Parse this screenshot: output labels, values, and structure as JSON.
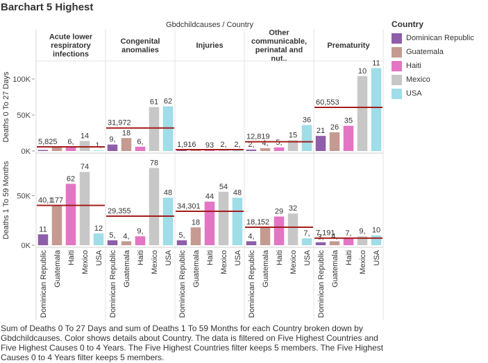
{
  "title": "Barchart 5 Highest",
  "header_caption": "Gbdchildcauses  /  Country",
  "legend": {
    "title": "Country",
    "items": [
      {
        "label": "Dominican Republic",
        "color": "#8e5ea8"
      },
      {
        "label": "Guatemala",
        "color": "#c49a91"
      },
      {
        "label": "Haiti",
        "color": "#e375c4"
      },
      {
        "label": "Mexico",
        "color": "#c7c7c7"
      },
      {
        "label": "USA",
        "color": "#9fdde8"
      }
    ]
  },
  "caption": "Sum of Deaths 0 To 27 Days and sum of Deaths 1 To 59 Months for each Country broken down by Gbdchildcauses.  Color shows details about Country. The data is filtered on Five Highest Countries and Five Highest Causes 0 to 4 Years. The Five Highest Countries filter keeps 5 members. The Five Highest Causes 0 to 4 Years filter keeps 5 members.",
  "chart_data": {
    "type": "bar",
    "columns": [
      "Acute lower respiratory infections",
      "Congenital anomalies",
      "Injuries",
      "Other communicable, perinatal and nut..",
      "Prematurity"
    ],
    "categories": [
      "Dominican Republic",
      "Guatemala",
      "Haiti",
      "Mexico",
      "USA"
    ],
    "rows": [
      {
        "label": "Deaths 0 To 27 Days",
        "ylim": [
          0,
          125000
        ],
        "ticks": [
          {
            "value": 0,
            "label": "0K"
          },
          {
            "value": 50000,
            "label": "50K"
          },
          {
            "value": 100000,
            "label": "100K"
          }
        ],
        "panels": [
          {
            "values": [
              1500,
              6500,
              6000,
              14000,
              1000
            ],
            "labels": [
              "",
              "",
              "6,",
              "14",
              "1,"
            ],
            "avg": 5825,
            "avg_label": "5,825"
          },
          {
            "values": [
              9000,
              18000,
              6000,
              61000,
              62000
            ],
            "labels": [
              "9,",
              "18",
              "6,",
              "61",
              "62"
            ],
            "avg": 31972,
            "avg_label": "31,972"
          },
          {
            "values": [
              2000,
              1500,
              93,
              2000,
              2000
            ],
            "labels": [
              "",
              "",
              "93",
              "2,",
              "2,"
            ],
            "avg": 1916,
            "avg_label": "1,916"
          },
          {
            "values": [
              2000,
              4000,
              5000,
              15000,
              36000
            ],
            "labels": [
              "2,",
              "4,",
              "5,",
              "15",
              "36"
            ],
            "avg": 12819,
            "avg_label": "12,819"
          },
          {
            "values": [
              21000,
              26000,
              35000,
              104000,
              115000
            ],
            "labels": [
              "21",
              "26",
              "35",
              "10",
              "11"
            ],
            "avg": 60553,
            "avg_label": "60,553"
          }
        ]
      },
      {
        "label": "Deaths 1 To 59 Months",
        "ylim": [
          0,
          93000
        ],
        "ticks": [
          {
            "value": 0,
            "label": "0K"
          },
          {
            "value": 50000,
            "label": "50K"
          }
        ],
        "panels": [
          {
            "values": [
              11000,
              40177,
              62000,
              74000,
              12000
            ],
            "labels": [
              "11",
              "177",
              "62",
              "74",
              "12"
            ],
            "avg": 40177,
            "avg_label": "40,1"
          },
          {
            "values": [
              5000,
              4000,
              9000,
              78000,
              48000
            ],
            "labels": [
              "5,",
              "4,",
              "9,",
              "78",
              "48"
            ],
            "avg": 29355,
            "avg_label": "29,355"
          },
          {
            "values": [
              5000,
              18000,
              44000,
              54000,
              48000
            ],
            "labels": [
              "5,",
              "18",
              "44",
              "54",
              "48"
            ],
            "avg": 34301,
            "avg_label": "34,301"
          },
          {
            "values": [
              4000,
              18152,
              29000,
              32000,
              7000
            ],
            "labels": [
              "4,",
              "52",
              "29",
              "32",
              "7,"
            ],
            "avg": 18152,
            "avg_label": "18,1"
          },
          {
            "values": [
              3000,
              4000,
              7000,
              9000,
              10000
            ],
            "labels": [
              "3,",
              "4,",
              "7,",
              "9,",
              "10"
            ],
            "avg": 7191,
            "avg_label": "7,191"
          }
        ]
      }
    ]
  }
}
